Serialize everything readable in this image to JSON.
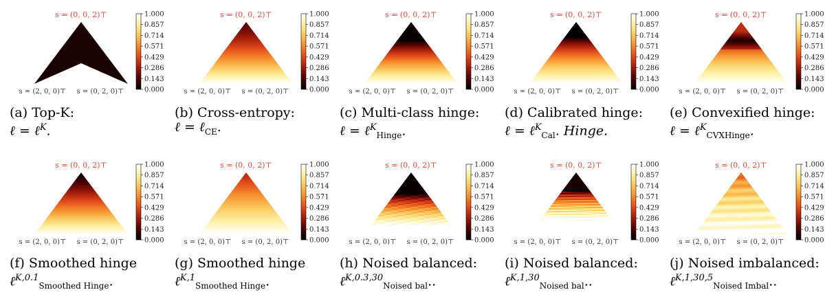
{
  "figure": {
    "vertex_labels": {
      "top": "s = (0, 0, 2)⊤",
      "left": "s = (2, 0, 0)⊤",
      "right": "s = (0, 2, 0)⊤"
    },
    "colorbar_ticks": [
      "1.000",
      "0.857",
      "0.714",
      "0.571",
      "0.429",
      "0.286",
      "0.143",
      "0.000"
    ],
    "colormap": [
      "#000000",
      "#4a0000",
      "#9e1a0a",
      "#e0481a",
      "#f58a2a",
      "#fbc55a",
      "#fdf0a0",
      "#ffffff"
    ],
    "panels": [
      {
        "id": "a",
        "label": "(a) Top-K:",
        "formula": "ℓ = ℓ^K.",
        "pattern": "topk"
      },
      {
        "id": "b",
        "label": "(b) Cross-entropy:",
        "formula": "ℓ = ℓ_CE.",
        "pattern": "ce"
      },
      {
        "id": "c",
        "label": "(c) Multi-class hinge:",
        "formula": "ℓ = ℓ^K_Hinge.",
        "pattern": "hinge"
      },
      {
        "id": "d",
        "label": "(d) Calibrated hinge:",
        "formula": "ℓ = ℓ^K_Cal. Hinge.",
        "pattern": "cal"
      },
      {
        "id": "e",
        "label": "(e) Convexified hinge:",
        "formula": "ℓ = ℓ^K_CVXHinge.",
        "pattern": "cvx"
      },
      {
        "id": "f",
        "label": "(f) Smoothed hinge",
        "formula": "ℓ^{K,0.1}_Smoothed Hinge.",
        "pattern": "smooth01"
      },
      {
        "id": "g",
        "label": "(g) Smoothed hinge",
        "formula": "ℓ^{K,1}_Smoothed Hinge.",
        "pattern": "smooth1"
      },
      {
        "id": "h",
        "label": "(h) Noised balanced:",
        "formula": "ℓ^{K,0.3,30}_Noised bal..",
        "pattern": "noised03"
      },
      {
        "id": "i",
        "label": "(i) Noised balanced:",
        "formula": "ℓ^{K,1,30}_Noised bal..",
        "pattern": "noised1"
      },
      {
        "id": "j",
        "label": "(j) Noised imbalanced:",
        "formula": "ℓ^{K,1,30,5}_Noised Imbal..",
        "pattern": "imbal"
      }
    ]
  }
}
